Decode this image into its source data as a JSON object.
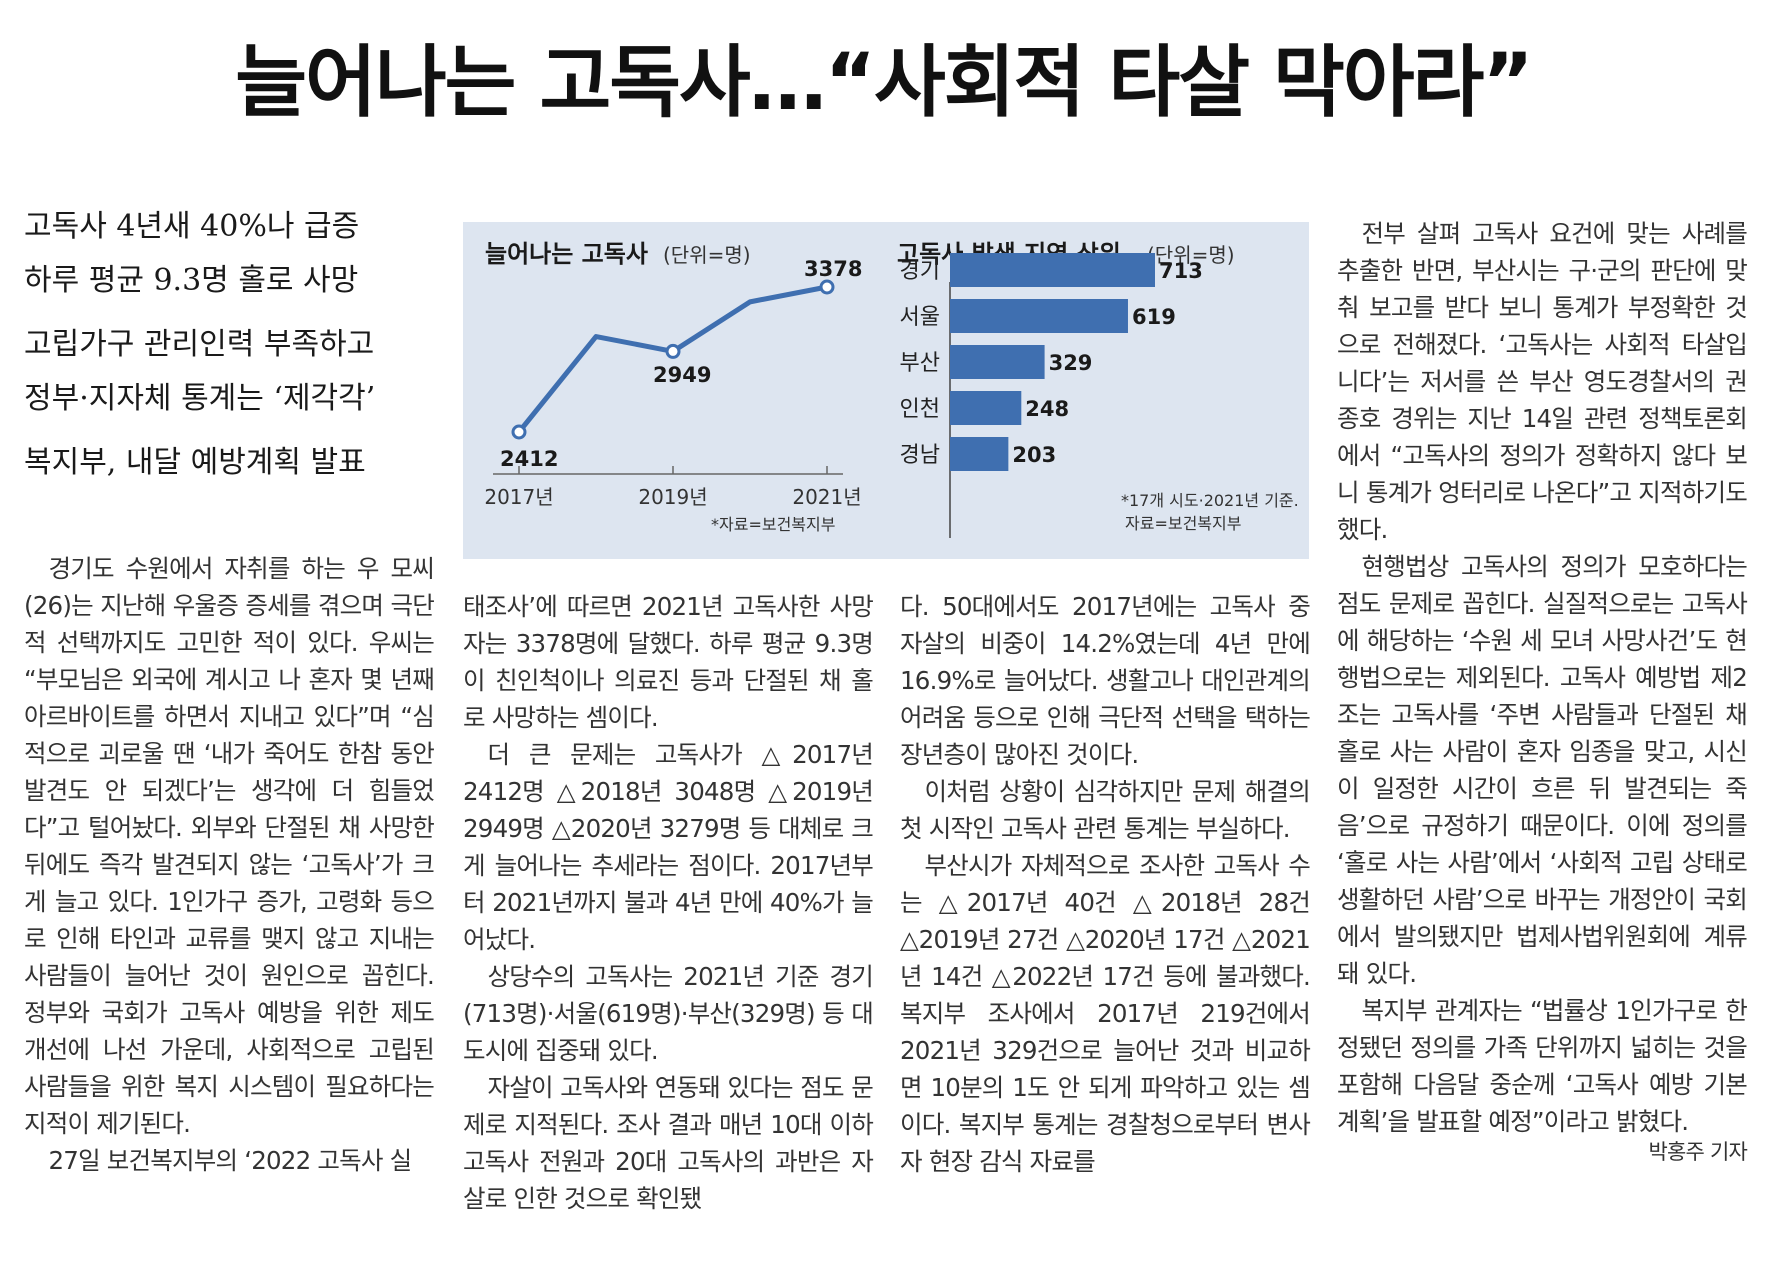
{
  "headline": "늘어나는 고독사…“사회적 타살 막아라”",
  "subheads": [
    "고독사 4년새 40%나 급증",
    "하루 평균 9.3명 홀로 사망",
    "고립가구 관리인력 부족하고",
    "정부·지자체 통계는 ‘제각각’",
    "복지부, 내달 예방계획 발표"
  ],
  "colors": {
    "accent": "#3f6fb0",
    "chart_bg": "#dde5f0"
  },
  "chart_data": [
    {
      "type": "line",
      "title": "늘어나는 고독사",
      "unit": "(단위=명)",
      "x": [
        "2017",
        "2018",
        "2019",
        "2020",
        "2021"
      ],
      "x_tick_labels": [
        "2017년",
        "2019년",
        "2021년"
      ],
      "series": [
        {
          "values": [
            2412,
            3048,
            2949,
            3279,
            3378
          ]
        }
      ],
      "data_labels": [
        "2412",
        "2949",
        "3378"
      ],
      "source": "*자료=보건복지부"
    },
    {
      "type": "bar",
      "orientation": "horizontal",
      "title": "고독사 발생 지역 상위",
      "unit": "(단위=명)",
      "categories": [
        "경기",
        "서울",
        "부산",
        "인천",
        "경남"
      ],
      "values": [
        713,
        619,
        329,
        248,
        203
      ],
      "note_lines": [
        "*17개 시도·2021년 기준.",
        "자료=보건복지부"
      ]
    }
  ],
  "body_columns": [
    {
      "paragraphs": [
        "경기도 수원에서 자취를 하는 우 모씨(26)는 지난해 우울증 증세를 겪으며 극단적 선택까지도 고민한 적이 있다. 우씨는 “부모님은 외국에 계시고 나 혼자 몇 년째 아르바이트를 하면서 지내고 있다”며 “심적으로 괴로울 땐 ‘내가 죽어도 한참 동안 발견도 안 되겠다’는 생각에 더 힘들었다”고 털어놨다. 외부와 단절된 채 사망한 뒤에도 즉각 발견되지 않는 ‘고독사’가 크게 늘고 있다. 1인가구 증가, 고령화 등으로 인해 타인과 교류를 맺지 않고 지내는 사람들이 늘어난 것이 원인으로 꼽힌다. 정부와 국회가 고독사 예방을 위한 제도 개선에 나선 가운데, 사회적으로 고립된 사람들을 위한 복지 시스템이 필요하다는 지적이 제기된다.",
        "27일 보건복지부의 ‘2022 고독사 실"
      ]
    },
    {
      "paragraphs": [
        "태조사’에 따르면 2021년 고독사한 사망자는 3378명에 달했다. 하루 평균 9.3명이 친인척이나 의료진 등과 단절된 채 홀로 사망하는 셈이다.",
        "더 큰 문제는 고독사가 △2017년 2412명 △2018년 3048명 △2019년 2949명 △2020년 3279명 등 대체로 크게 늘어나는 추세라는 점이다. 2017년부터 2021년까지 불과 4년 만에 40%가 늘어났다.",
        "상당수의 고독사는 2021년 기준 경기(713명)·서울(619명)·부산(329명) 등 대도시에 집중돼 있다.",
        "자살이 고독사와 연동돼 있다는 점도 문제로 지적된다. 조사 결과 매년 10대 이하 고독사 전원과 20대 고독사의 과반은 자살로 인한 것으로 확인됐"
      ]
    },
    {
      "paragraphs": [
        "다. 50대에서도 2017년에는 고독사 중 자살의 비중이 14.2%였는데 4년 만에 16.9%로 늘어났다. 생활고나 대인관계의 어려움 등으로 인해 극단적 선택을 택하는 장년층이 많아진 것이다.",
        "이처럼 상황이 심각하지만 문제 해결의 첫 시작인 고독사 관련 통계는 부실하다.",
        "부산시가 자체적으로 조사한 고독사 수는 △2017년 40건 △2018년 28건 △2019년 27건 △2020년 17건 △2021년 14건 △2022년 17건 등에 불과했다. 복지부 조사에서 2017년 219건에서 2021년 329건으로 늘어난 것과 비교하면 10분의 1도 안 되게 파악하고 있는 셈이다. 복지부 통계는 경찰청으로부터 변사자 현장 감식 자료를"
      ]
    },
    {
      "paragraphs": [
        "전부 살펴 고독사 요건에 맞는 사례를 추출한 반면, 부산시는 구·군의 판단에 맞춰 보고를 받다 보니 통계가 부정확한 것으로 전해졌다. ‘고독사는 사회적 타살입니다’는 저서를 쓴 부산 영도경찰서의 권종호 경위는 지난 14일 관련 정책토론회에서 “고독사의 정의가 정확하지 않다 보니 통계가 엉터리로 나온다”고 지적하기도 했다.",
        "현행법상 고독사의 정의가 모호하다는 점도 문제로 꼽힌다. 실질적으로는 고독사에 해당하는 ‘수원 세 모녀 사망사건’도 현행법으로는 제외된다. 고독사 예방법 제2조는 고독사를 ‘주변 사람들과 단절된 채 홀로 사는 사람이 혼자 임종을 맞고, 시신이 일정한 시간이 흐른 뒤 발견되는 죽음’으로 규정하기 때문이다. 이에 정의를 ‘홀로 사는 사람’에서 ‘사회적 고립 상태로 생활하던 사람’으로 바꾸는 개정안이 국회에서 발의됐지만 법제사법위원회에 계류돼 있다.",
        "복지부 관계자는 “법률상 1인가구로 한정됐던 정의를 가족 단위까지 넓히는 것을 포함해 다음달 중순께 ‘고독사 예방 기본계획’을 발표할 예정”이라고 밝혔다."
      ]
    }
  ],
  "byline": "박홍주 기자"
}
